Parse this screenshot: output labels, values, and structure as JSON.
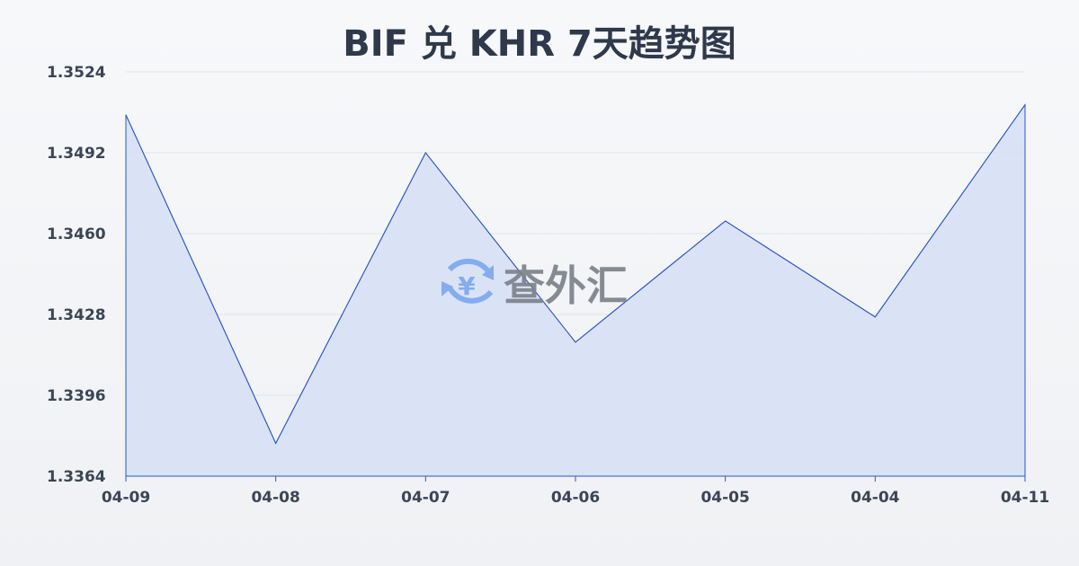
{
  "chart_data": {
    "type": "area",
    "title": "BIF 兑 KHR 7天趋势图",
    "categories": [
      "04-09",
      "04-08",
      "04-07",
      "04-06",
      "04-05",
      "04-04",
      "04-11"
    ],
    "values": [
      1.3507,
      1.3377,
      1.3492,
      1.3417,
      1.3465,
      1.3427,
      1.3511
    ],
    "ylim": [
      1.3364,
      1.3524
    ],
    "yticks": [
      "1.3524",
      "1.3492",
      "1.3460",
      "1.3428",
      "1.3396",
      "1.3364"
    ],
    "grid": true,
    "xlabel": "",
    "ylabel": "",
    "colors": {
      "line": "#2a56c6",
      "fill": "#d3def5"
    }
  },
  "watermark": {
    "text": "查外汇",
    "icon": "yen-exchange-icon"
  }
}
